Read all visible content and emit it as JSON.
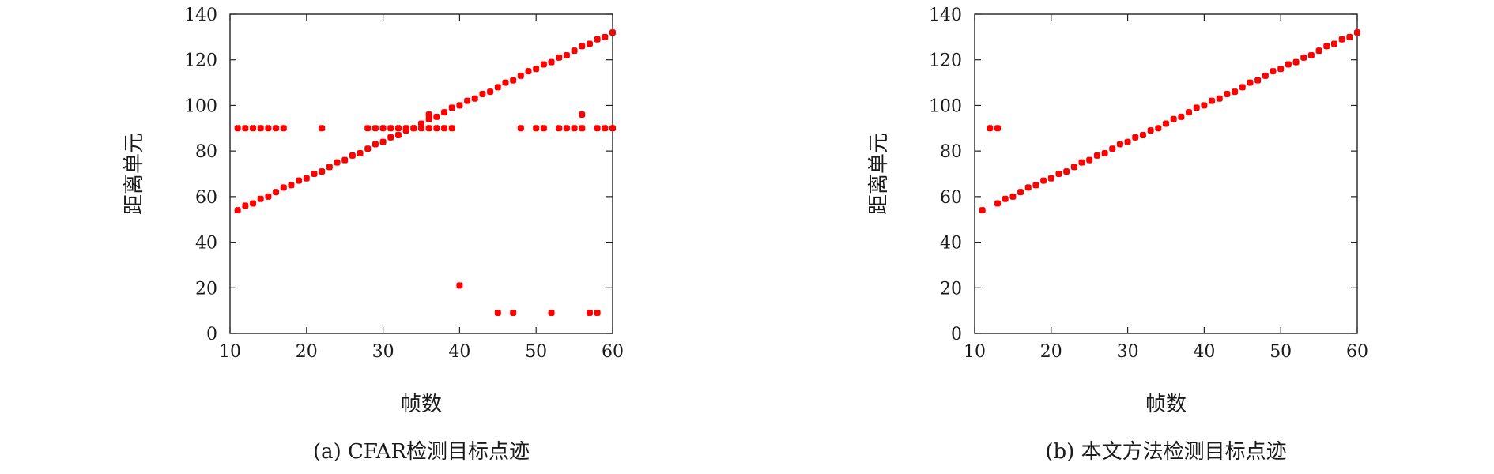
{
  "chart_data": [
    {
      "type": "scatter",
      "caption": "(a) CFAR检测目标点迹",
      "xlabel": "帧数",
      "ylabel": "距离单元",
      "xlim": [
        10,
        60
      ],
      "ylim": [
        0,
        140
      ],
      "xticks": [
        "10",
        "20",
        "30",
        "40",
        "50",
        "60"
      ],
      "yticks": [
        "0",
        "20",
        "40",
        "60",
        "80",
        "100",
        "120",
        "140"
      ],
      "grid": false,
      "color": "#ff0000",
      "series": [
        {
          "points": [
            [
              11,
              54
            ],
            [
              12,
              56
            ],
            [
              13,
              57
            ],
            [
              14,
              59
            ],
            [
              15,
              60
            ],
            [
              16,
              62
            ],
            [
              17,
              64
            ],
            [
              18,
              65
            ],
            [
              19,
              67
            ],
            [
              20,
              68
            ],
            [
              21,
              70
            ],
            [
              22,
              71
            ],
            [
              23,
              73
            ],
            [
              24,
              75
            ],
            [
              25,
              76
            ],
            [
              26,
              78
            ],
            [
              27,
              79
            ],
            [
              28,
              81
            ],
            [
              29,
              83
            ],
            [
              30,
              84
            ],
            [
              31,
              86
            ],
            [
              32,
              87
            ],
            [
              33,
              89
            ],
            [
              34,
              90
            ],
            [
              35,
              92
            ],
            [
              36,
              94
            ],
            [
              37,
              95
            ],
            [
              38,
              97
            ],
            [
              39,
              99
            ],
            [
              40,
              100
            ],
            [
              41,
              102
            ],
            [
              42,
              103
            ],
            [
              43,
              105
            ],
            [
              44,
              106
            ],
            [
              45,
              108
            ],
            [
              46,
              110
            ],
            [
              47,
              111
            ],
            [
              48,
              113
            ],
            [
              49,
              115
            ],
            [
              50,
              116
            ],
            [
              51,
              118
            ],
            [
              52,
              119
            ],
            [
              53,
              121
            ],
            [
              54,
              122
            ],
            [
              55,
              124
            ],
            [
              56,
              126
            ],
            [
              57,
              127
            ],
            [
              58,
              129
            ],
            [
              59,
              130
            ],
            [
              60,
              132
            ],
            [
              11,
              90
            ],
            [
              12,
              90
            ],
            [
              13,
              90
            ],
            [
              14,
              90
            ],
            [
              15,
              90
            ],
            [
              16,
              90
            ],
            [
              17,
              90
            ],
            [
              22,
              90
            ],
            [
              28,
              90
            ],
            [
              29,
              90
            ],
            [
              30,
              90
            ],
            [
              31,
              90
            ],
            [
              32,
              90
            ],
            [
              33,
              90
            ],
            [
              34,
              90
            ],
            [
              35,
              90
            ],
            [
              36,
              90
            ],
            [
              37,
              90
            ],
            [
              38,
              90
            ],
            [
              39,
              90
            ],
            [
              36,
              96
            ],
            [
              48,
              90
            ],
            [
              50,
              90
            ],
            [
              51,
              90
            ],
            [
              53,
              90
            ],
            [
              54,
              90
            ],
            [
              55,
              90
            ],
            [
              56,
              90
            ],
            [
              56,
              96
            ],
            [
              58,
              90
            ],
            [
              59,
              90
            ],
            [
              60,
              90
            ],
            [
              40,
              21
            ],
            [
              45,
              9
            ],
            [
              47,
              9
            ],
            [
              52,
              9
            ],
            [
              57,
              9
            ],
            [
              58,
              9
            ]
          ]
        }
      ]
    },
    {
      "type": "scatter",
      "caption": "(b) 本文方法检测目标点迹",
      "xlabel": "帧数",
      "ylabel": "距离单元",
      "xlim": [
        10,
        60
      ],
      "ylim": [
        0,
        140
      ],
      "xticks": [
        "10",
        "20",
        "30",
        "40",
        "50",
        "60"
      ],
      "yticks": [
        "0",
        "20",
        "40",
        "60",
        "80",
        "100",
        "120",
        "140"
      ],
      "grid": false,
      "color": "#ff0000",
      "series": [
        {
          "points": [
            [
              11,
              54
            ],
            [
              13,
              57
            ],
            [
              14,
              59
            ],
            [
              15,
              60
            ],
            [
              16,
              62
            ],
            [
              17,
              64
            ],
            [
              18,
              65
            ],
            [
              19,
              67
            ],
            [
              20,
              68
            ],
            [
              21,
              70
            ],
            [
              22,
              71
            ],
            [
              23,
              73
            ],
            [
              24,
              75
            ],
            [
              25,
              76
            ],
            [
              26,
              78
            ],
            [
              27,
              79
            ],
            [
              28,
              81
            ],
            [
              29,
              83
            ],
            [
              30,
              84
            ],
            [
              31,
              86
            ],
            [
              32,
              87
            ],
            [
              33,
              89
            ],
            [
              34,
              90
            ],
            [
              35,
              92
            ],
            [
              36,
              94
            ],
            [
              37,
              95
            ],
            [
              38,
              97
            ],
            [
              39,
              99
            ],
            [
              40,
              100
            ],
            [
              41,
              102
            ],
            [
              42,
              103
            ],
            [
              43,
              105
            ],
            [
              44,
              106
            ],
            [
              45,
              108
            ],
            [
              46,
              110
            ],
            [
              47,
              111
            ],
            [
              48,
              113
            ],
            [
              49,
              115
            ],
            [
              50,
              116
            ],
            [
              51,
              118
            ],
            [
              52,
              119
            ],
            [
              53,
              121
            ],
            [
              54,
              122
            ],
            [
              55,
              124
            ],
            [
              56,
              126
            ],
            [
              57,
              127
            ],
            [
              58,
              129
            ],
            [
              59,
              130
            ],
            [
              60,
              132
            ],
            [
              12,
              90
            ],
            [
              13,
              90
            ]
          ]
        }
      ]
    }
  ]
}
